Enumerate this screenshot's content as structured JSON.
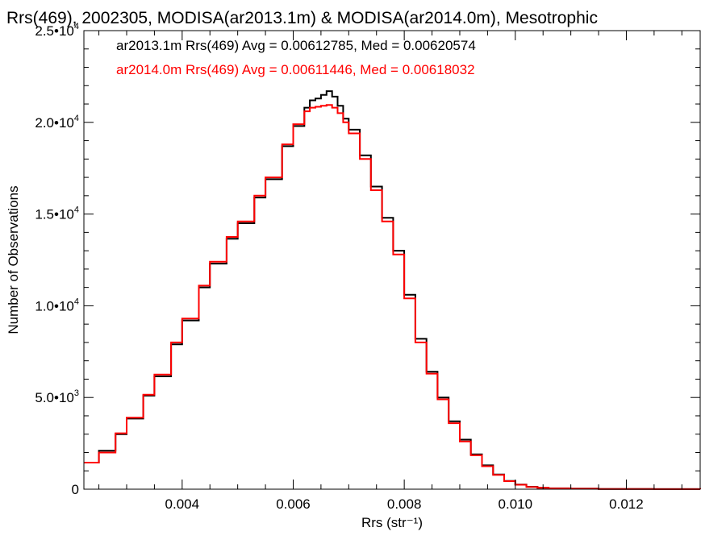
{
  "chart_data": {
    "type": "line",
    "title": "Rrs(469), 2002305, MODISA(ar2013.1m) & MODISA(ar2014.0m), Mesotrophic",
    "xlabel": "Rrs (str⁻¹)",
    "ylabel": "Number of Observations",
    "xlim": [
      0.00223,
      0.01333
    ],
    "ylim": [
      0,
      25000
    ],
    "x_ticks": [
      0.004,
      0.006,
      0.008,
      0.01,
      0.012
    ],
    "x_tick_labels": [
      "0.004",
      "0.006",
      "0.008",
      "0.010",
      "0.012"
    ],
    "y_ticks": [
      0,
      5000,
      10000,
      15000,
      20000,
      25000
    ],
    "y_tick_labels": [
      {
        "base": "0",
        "exp": ""
      },
      {
        "base": "5.0•10",
        "exp": "3"
      },
      {
        "base": "1.0•10",
        "exp": "4"
      },
      {
        "base": "1.5•10",
        "exp": "4"
      },
      {
        "base": "2.0•10",
        "exp": "4"
      },
      {
        "base": "2.5•10",
        "exp": "4"
      }
    ],
    "grid": false,
    "legend_position": "top-left",
    "series": [
      {
        "name": "ar2013.1m",
        "label": "ar2013.1m Rrs(469) Avg = 0.00612785, Med = 0.00620574",
        "color": "#000000",
        "x": [
          0.00223,
          0.0025,
          0.0028,
          0.003,
          0.0033,
          0.0035,
          0.0038,
          0.004,
          0.0043,
          0.0045,
          0.0048,
          0.005,
          0.0053,
          0.0055,
          0.0058,
          0.006,
          0.0062,
          0.0063,
          0.0064,
          0.0065,
          0.0066,
          0.0067,
          0.0068,
          0.0069,
          0.007,
          0.0072,
          0.0074,
          0.0076,
          0.0078,
          0.008,
          0.0082,
          0.0084,
          0.0086,
          0.0088,
          0.009,
          0.0092,
          0.0094,
          0.0096,
          0.0098,
          0.01,
          0.0102,
          0.0104,
          0.0106,
          0.011,
          0.0115,
          0.012,
          0.0125,
          0.013,
          0.01333
        ],
        "y": [
          1450,
          2100,
          3000,
          3850,
          5100,
          6150,
          7900,
          9200,
          11000,
          12300,
          13650,
          14500,
          15900,
          16900,
          18700,
          19800,
          20800,
          21200,
          21300,
          21500,
          21700,
          21400,
          20900,
          20200,
          19600,
          18200,
          16500,
          14800,
          13000,
          10600,
          8200,
          6400,
          5000,
          3700,
          2700,
          1900,
          1300,
          800,
          450,
          250,
          130,
          80,
          50,
          30,
          15,
          10,
          5,
          3,
          2
        ]
      },
      {
        "name": "ar2014.0m",
        "label": "ar2014.0m Rrs(469) Avg = 0.00611446, Med = 0.00618032",
        "color": "#ff0000",
        "x": [
          0.00223,
          0.0025,
          0.0028,
          0.003,
          0.0033,
          0.0035,
          0.0038,
          0.004,
          0.0043,
          0.0045,
          0.0048,
          0.005,
          0.0053,
          0.0055,
          0.0058,
          0.006,
          0.0062,
          0.0063,
          0.0064,
          0.0065,
          0.0066,
          0.0067,
          0.0068,
          0.0069,
          0.007,
          0.0072,
          0.0074,
          0.0076,
          0.0078,
          0.008,
          0.0082,
          0.0084,
          0.0086,
          0.0088,
          0.009,
          0.0092,
          0.0094,
          0.0096,
          0.0098,
          0.01,
          0.0102,
          0.0104,
          0.0106,
          0.011,
          0.0115,
          0.012,
          0.0125,
          0.013,
          0.01333
        ],
        "y": [
          1450,
          2000,
          3050,
          3900,
          5150,
          6250,
          8000,
          9300,
          11100,
          12400,
          13750,
          14600,
          16000,
          17000,
          18800,
          19900,
          20600,
          20800,
          20850,
          20900,
          20950,
          20800,
          20500,
          20000,
          19400,
          18000,
          16300,
          14600,
          12800,
          10400,
          8000,
          6300,
          4900,
          3600,
          2600,
          1850,
          1250,
          780,
          440,
          240,
          120,
          75,
          45,
          28,
          14,
          9,
          5,
          3,
          2
        ]
      }
    ]
  }
}
